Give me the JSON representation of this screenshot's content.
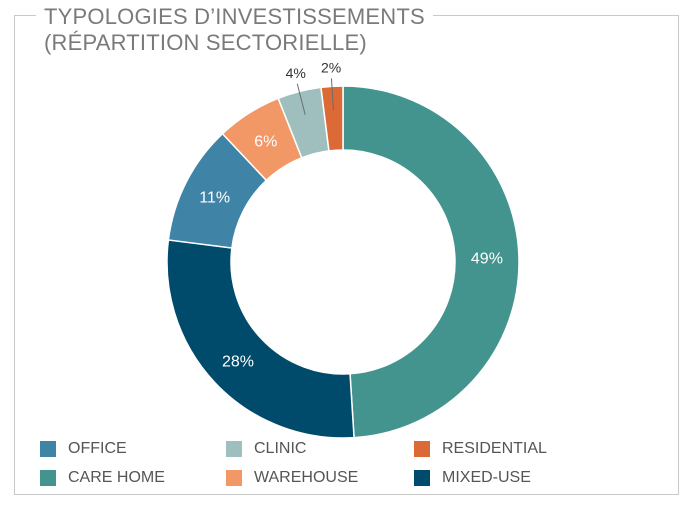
{
  "title": {
    "line1": "TYPOLOGIES D’INVESTISSEMENTS",
    "line2": "(RÉPARTITION SECTORIELLE)"
  },
  "chart_data": {
    "type": "pie",
    "donut": true,
    "title": "TYPOLOGIES D’INVESTISSEMENTS (RÉPARTITION SECTORIELLE)",
    "legend_position": "bottom",
    "slices": [
      {
        "name": "CARE HOME",
        "value": 49,
        "label": "49%",
        "color": "#43948f"
      },
      {
        "name": "MIXED-USE",
        "value": 28,
        "label": "28%",
        "color": "#004a6c"
      },
      {
        "name": "OFFICE",
        "value": 11,
        "label": "11%",
        "color": "#3f83a6"
      },
      {
        "name": "WAREHOUSE",
        "value": 6,
        "label": "6%",
        "color": "#f29866"
      },
      {
        "name": "CLINIC",
        "value": 4,
        "label": "4%",
        "color": "#9fbfbe"
      },
      {
        "name": "RESIDENTIAL",
        "value": 2,
        "label": "2%",
        "color": "#dc6a37"
      }
    ],
    "legend": [
      {
        "name": "OFFICE",
        "color": "#3f83a6"
      },
      {
        "name": "CLINIC",
        "color": "#9fbfbe"
      },
      {
        "name": "RESIDENTIAL",
        "color": "#dc6a37"
      },
      {
        "name": "CARE HOME",
        "color": "#43948f"
      },
      {
        "name": "WAREHOUSE",
        "color": "#f29866"
      },
      {
        "name": "MIXED-USE",
        "color": "#004a6c"
      }
    ]
  }
}
